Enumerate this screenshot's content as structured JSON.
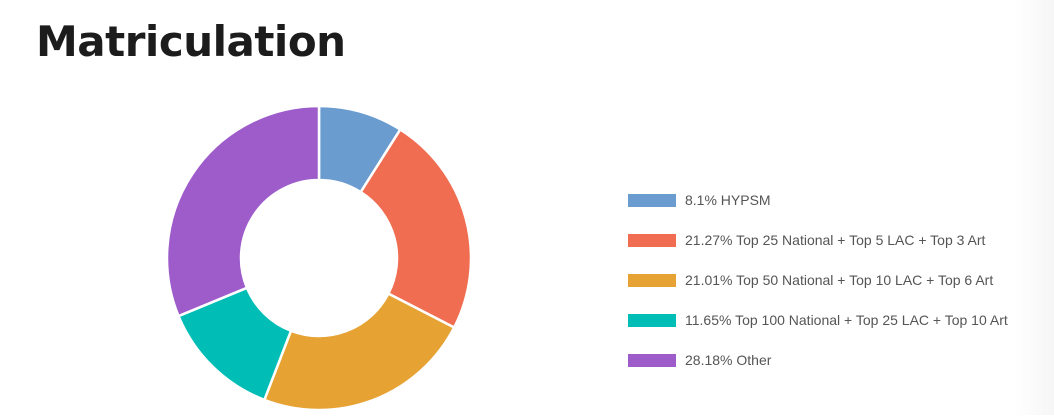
{
  "page": {
    "title": "Matriculation"
  },
  "chart_data": {
    "type": "pie",
    "donut": true,
    "title": "",
    "legend_position": "right",
    "slices": [
      {
        "label": "8.1% HYPSM",
        "value": 8.1,
        "color": "#6a9ccf"
      },
      {
        "label": "21.27% Top 25 National + Top 5 LAC + Top 3 Art",
        "value": 21.27,
        "color": "#f06d51"
      },
      {
        "label": "21.01% Top 50 National + Top 10 LAC + Top 6 Art",
        "value": 21.01,
        "color": "#e6a232"
      },
      {
        "label": "11.65% Top 100 National + Top 25 LAC + Top 10 Art",
        "value": 11.65,
        "color": "#00bdb6"
      },
      {
        "label": "28.18% Other",
        "value": 28.18,
        "color": "#9e5ccb"
      }
    ]
  }
}
